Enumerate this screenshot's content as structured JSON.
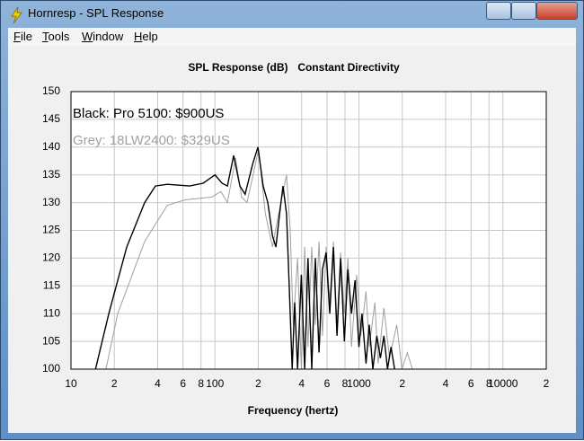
{
  "window": {
    "title": "Hornresp - SPL Response"
  },
  "menu": [
    "File",
    "Tools",
    "Window",
    "Help"
  ],
  "chart_data": {
    "type": "line",
    "title": "SPL Response (dB)",
    "subtitle": "Constant Directivity",
    "x_label": "Frequency (hertz)",
    "xscale": "log",
    "grid": true,
    "xlim": [
      10,
      20000
    ],
    "xticks": [
      10,
      {
        "value": 20,
        "label": "2"
      },
      {
        "value": 40,
        "label": "4"
      },
      {
        "value": 60,
        "label": "6"
      },
      {
        "value": 80,
        "label": "8"
      },
      100,
      {
        "value": 200,
        "label": "2"
      },
      {
        "value": 400,
        "label": "4"
      },
      {
        "value": 600,
        "label": "6"
      },
      {
        "value": 800,
        "label": "8"
      },
      1000,
      {
        "value": 2000,
        "label": "2"
      },
      {
        "value": 4000,
        "label": "4"
      },
      {
        "value": 6000,
        "label": "6"
      },
      {
        "value": 8000,
        "label": "8"
      },
      10000,
      {
        "value": 20000,
        "label": "2"
      }
    ],
    "ylim": [
      100,
      150
    ],
    "yticks": [
      100,
      105,
      110,
      115,
      120,
      125,
      130,
      135,
      140,
      145,
      150
    ],
    "series": [
      {
        "name": "Black: Pro 5100: $900US",
        "color": "#000000",
        "x": [
          14.8,
          18.3,
          24.4,
          32.5,
          38.6,
          46.6,
          66.6,
          82.8,
          100,
          112,
          122,
          135,
          149,
          162,
          183,
          199,
          216,
          233,
          251,
          265,
          281,
          297,
          314,
          328,
          344,
          358,
          375,
          398,
          420,
          443,
          470,
          498,
          528,
          558,
          592,
          627,
          665,
          704,
          746,
          792,
          838,
          888,
          940,
          1000,
          1050,
          1120,
          1180,
          1250,
          1330,
          1410,
          1490,
          1580,
          1670,
          1770
        ],
        "values": [
          100,
          110,
          122,
          130,
          133,
          133.3,
          133,
          133.5,
          135,
          133.5,
          133,
          138.5,
          133,
          131.5,
          137,
          140,
          133,
          130,
          124,
          122,
          128,
          133,
          128,
          115,
          100,
          112,
          100,
          117,
          100,
          120,
          100,
          120,
          103,
          118,
          121,
          110,
          122,
          106,
          120,
          105,
          118,
          110,
          116,
          104,
          110,
          101,
          108,
          100,
          106,
          102,
          106,
          100,
          104,
          100
        ]
      },
      {
        "name": "Grey: 18LW2400: $329US",
        "color": "#a0a0a0",
        "x": [
          17.5,
          21.1,
          32.5,
          46.6,
          62,
          95,
          110,
          122,
          139,
          153,
          167,
          201,
          224,
          251,
          272,
          314,
          333,
          350,
          375,
          398,
          420,
          443,
          470,
          498,
          528,
          558,
          592,
          627,
          665,
          704,
          746,
          792,
          838,
          888,
          965,
          1030,
          1120,
          1180,
          1290,
          1360,
          1490,
          1630,
          1830,
          1990,
          2170,
          2350
        ],
        "values": [
          100,
          110,
          123,
          129.5,
          130.5,
          131,
          132,
          130,
          138,
          131,
          130,
          139.5,
          128,
          122,
          127,
          135,
          125,
          108,
          120,
          100,
          122,
          104,
          122,
          108,
          123,
          106,
          122,
          112,
          123,
          108,
          121,
          110,
          120,
          104,
          117,
          106,
          114,
          104,
          112,
          101,
          111,
          102,
          108,
          100,
          103,
          100
        ]
      }
    ]
  }
}
